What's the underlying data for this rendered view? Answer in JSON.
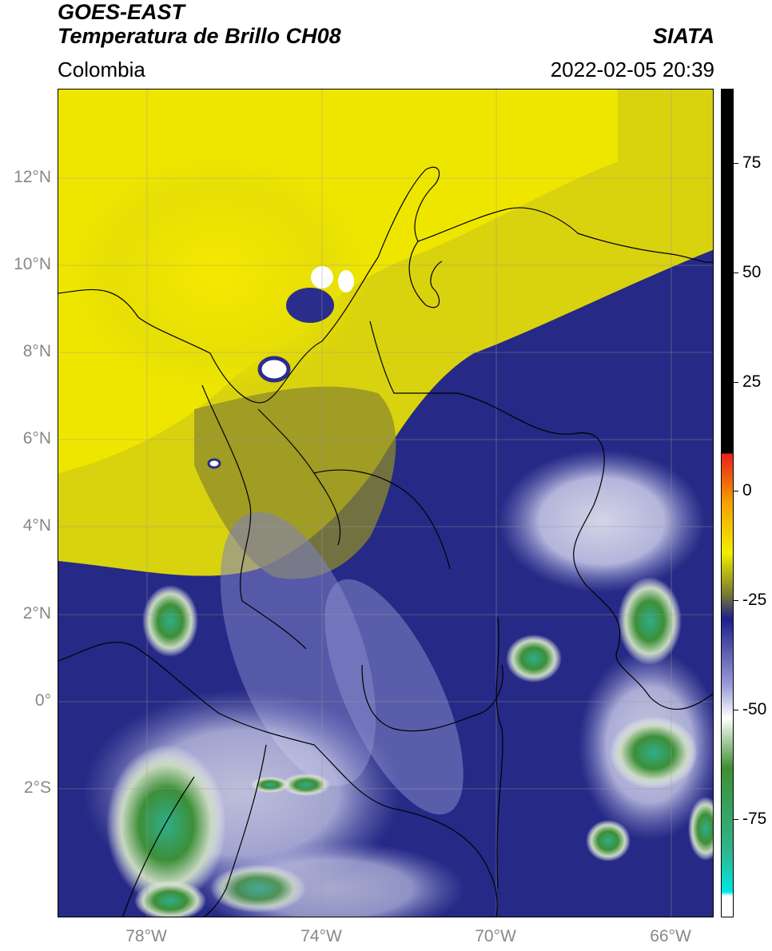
{
  "header": {
    "satellite": "GOES-EAST",
    "product": "Temperatura de Brillo CH08",
    "region": "Colombia",
    "brand": "SIATA",
    "timestamp": "2022-02-05 20:39"
  },
  "map": {
    "lat_labels": [
      "12°N",
      "10°N",
      "8°N",
      "6°N",
      "4°N",
      "2°N",
      "0°",
      "2°S"
    ],
    "lon_labels": [
      "78°W",
      "74°W",
      "70°W",
      "66°W"
    ]
  },
  "colorbar": {
    "labels": [
      "75",
      "50",
      "25",
      "0",
      "-25",
      "-50",
      "-75"
    ],
    "colors": {
      "black": "#000000",
      "red": "#e8211a",
      "orange": "#f5a000",
      "yellow": "#f2ee00",
      "olive": "#7c7a2e",
      "navy": "#1d1f8a",
      "lavender": "#9a9cd8",
      "white": "#ffffff",
      "green": "#3f8f32",
      "teal": "#2fb58c",
      "cyan": "#00e5e5"
    }
  }
}
